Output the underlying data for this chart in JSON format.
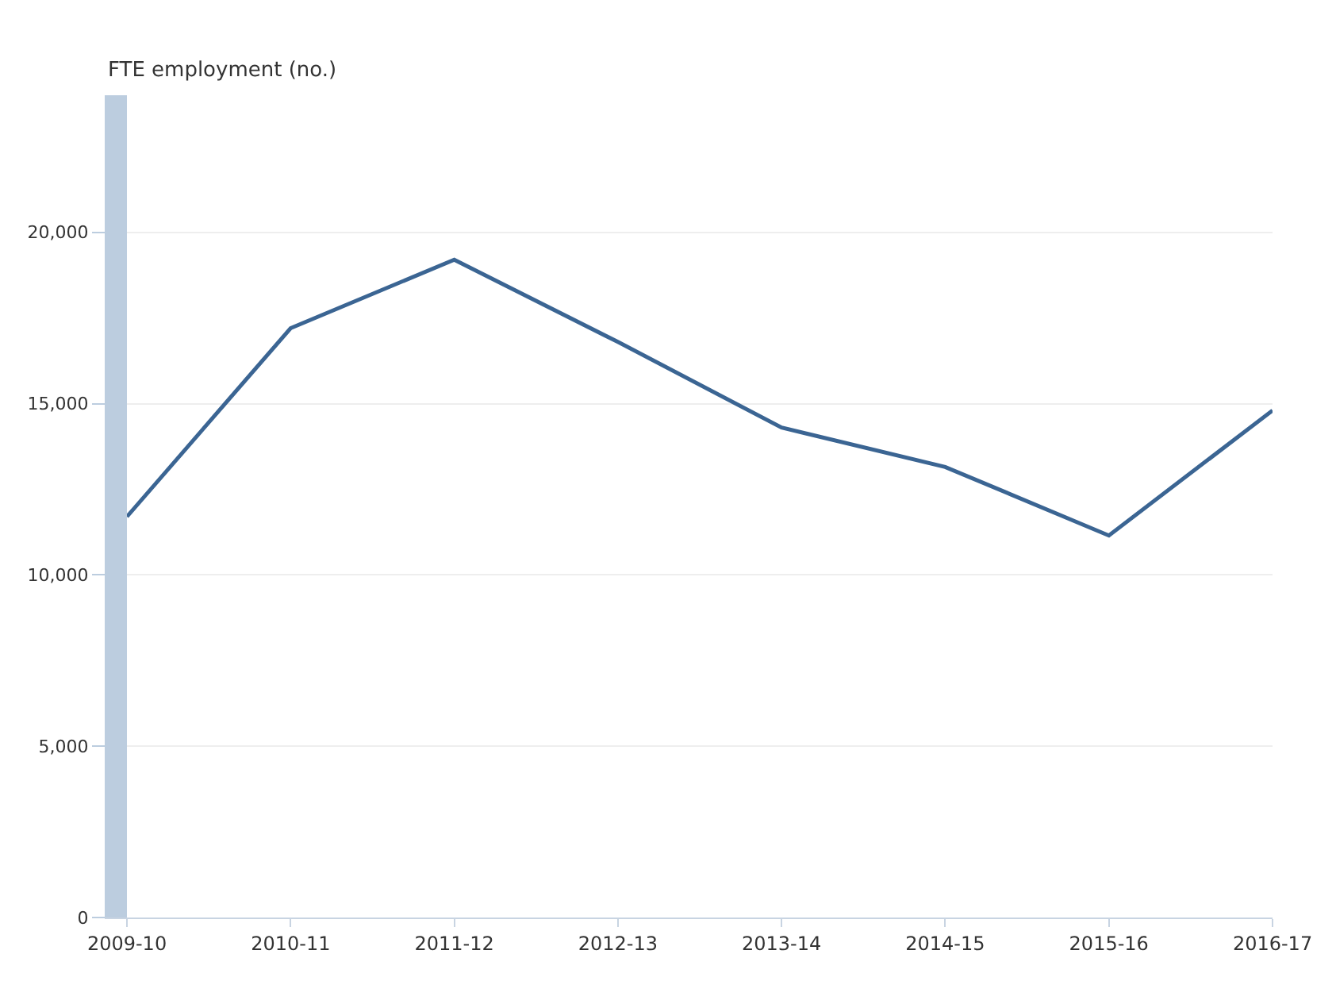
{
  "chart_data": {
    "type": "line",
    "ylabel": "FTE employment (no.)",
    "categories": [
      "2009-10",
      "2010-11",
      "2011-12",
      "2012-13",
      "2013-14",
      "2014-15",
      "2015-16",
      "2016-17"
    ],
    "series": [
      {
        "color": "#3b6593",
        "values": [
          11700,
          17200,
          19200,
          16800,
          14300,
          13150,
          11150,
          14800
        ]
      }
    ],
    "ylim": [
      0,
      24000
    ],
    "yticks": [
      {
        "value": 0,
        "label": "0"
      },
      {
        "value": 5000,
        "label": "5,000"
      },
      {
        "value": 10000,
        "label": "10,000"
      },
      {
        "value": 15000,
        "label": "15,000"
      },
      {
        "value": 20000,
        "label": "20,000"
      }
    ],
    "grid": "y",
    "marker": "none",
    "line_style": "solid"
  }
}
